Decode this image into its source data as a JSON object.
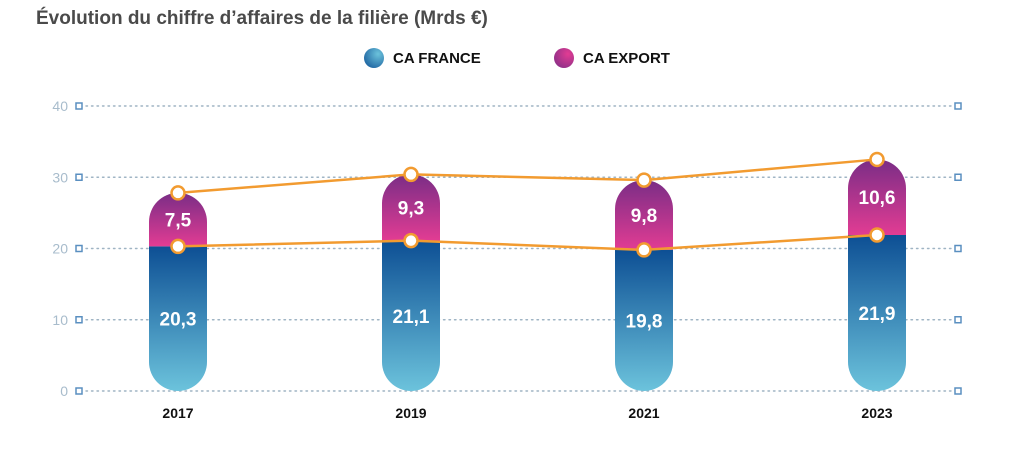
{
  "title": "Évolution du chiffre d’affaires de la filière (Mrds €)",
  "legend": {
    "france": "CA FRANCE",
    "export": "CA EXPORT"
  },
  "colors": {
    "france_top": "#0d4f94",
    "france_bottom": "#6cc3dc",
    "export_top": "#7a2d86",
    "export_bottom": "#e23c93",
    "line": "#f29b30",
    "grid": "#9fb4c4",
    "tick_text": "#a8bccc"
  },
  "chart_data": {
    "type": "bar",
    "stacked": true,
    "categories": [
      "2017",
      "2019",
      "2021",
      "2023"
    ],
    "series": [
      {
        "name": "CA FRANCE",
        "values": [
          20.3,
          21.1,
          19.8,
          21.9
        ],
        "labels": [
          "20,3",
          "21,1",
          "19,8",
          "21,9"
        ]
      },
      {
        "name": "CA EXPORT",
        "values": [
          7.5,
          9.3,
          9.8,
          10.6
        ],
        "labels": [
          "7,5",
          "9,3",
          "9,8",
          "10,6"
        ]
      }
    ],
    "ylim": [
      0,
      40
    ],
    "yticks": [
      "0",
      "10",
      "20",
      "30",
      "40"
    ],
    "grid": true,
    "legend_position": "top-center",
    "overlay_lines": "connect stacked segment tops"
  }
}
